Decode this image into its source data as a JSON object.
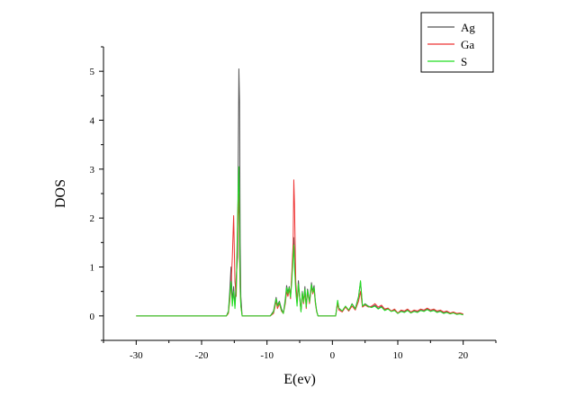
{
  "chart_data": {
    "type": "line",
    "title": "",
    "xlabel": "E(ev)",
    "ylabel": "DOS",
    "xlim": [
      -35,
      25
    ],
    "ylim": [
      -0.5,
      5.5
    ],
    "x_ticks": [
      -30,
      -20,
      -10,
      0,
      10,
      20
    ],
    "y_ticks": [
      0,
      1,
      2,
      3,
      4,
      5
    ],
    "x_tick_labels": [
      "-30",
      "-20",
      "-10",
      "0",
      "10",
      "20"
    ],
    "y_tick_labels": [
      "0",
      "1",
      "2",
      "3",
      "4",
      "5"
    ],
    "grid": false,
    "legend_position": "top-right",
    "series": [
      {
        "name": "Ag",
        "color": "#555555",
        "points": [
          [
            -30,
            0
          ],
          [
            -16.2,
            0
          ],
          [
            -15.9,
            0.1
          ],
          [
            -15.7,
            0.5
          ],
          [
            -15.5,
            1.0
          ],
          [
            -15.3,
            0.3
          ],
          [
            -15.1,
            0.6
          ],
          [
            -14.9,
            0.2
          ],
          [
            -14.7,
            0.8
          ],
          [
            -14.5,
            1.2
          ],
          [
            -14.3,
            5.05
          ],
          [
            -14.2,
            4.4
          ],
          [
            -14.1,
            1.5
          ],
          [
            -14.0,
            0.4
          ],
          [
            -13.8,
            0
          ],
          [
            -9.5,
            0
          ],
          [
            -9.0,
            0.1
          ],
          [
            -8.6,
            0.38
          ],
          [
            -8.4,
            0.22
          ],
          [
            -8.1,
            0.3
          ],
          [
            -7.8,
            0.15
          ],
          [
            -7.5,
            0.05
          ],
          [
            -7.2,
            0.35
          ],
          [
            -7.0,
            0.62
          ],
          [
            -6.8,
            0.48
          ],
          [
            -6.6,
            0.6
          ],
          [
            -6.4,
            0.4
          ],
          [
            -6.2,
            0.8
          ],
          [
            -6.0,
            1.4
          ],
          [
            -5.9,
            1.6
          ],
          [
            -5.8,
            1.2
          ],
          [
            -5.6,
            0.55
          ],
          [
            -5.4,
            0.25
          ],
          [
            -5.2,
            0.72
          ],
          [
            -5.0,
            0.4
          ],
          [
            -4.8,
            0.1
          ],
          [
            -4.6,
            0.5
          ],
          [
            -4.4,
            0.3
          ],
          [
            -4.2,
            0.6
          ],
          [
            -4.0,
            0.2
          ],
          [
            -3.8,
            0.55
          ],
          [
            -3.5,
            0.3
          ],
          [
            -3.2,
            0.68
          ],
          [
            -3.0,
            0.5
          ],
          [
            -2.8,
            0.62
          ],
          [
            -2.6,
            0.3
          ],
          [
            -2.4,
            0.1
          ],
          [
            -2.2,
            0
          ],
          [
            0.5,
            0
          ],
          [
            0.8,
            0.3
          ],
          [
            1.0,
            0.15
          ],
          [
            1.5,
            0.1
          ],
          [
            2.0,
            0.2
          ],
          [
            2.5,
            0.1
          ],
          [
            3.0,
            0.25
          ],
          [
            3.5,
            0.15
          ],
          [
            4.0,
            0.4
          ],
          [
            4.3,
            0.7
          ],
          [
            4.6,
            0.2
          ],
          [
            5.0,
            0.25
          ],
          [
            5.5,
            0.2
          ],
          [
            6.0,
            0.18
          ],
          [
            6.5,
            0.22
          ],
          [
            7.0,
            0.15
          ],
          [
            7.5,
            0.2
          ],
          [
            8.0,
            0.12
          ],
          [
            8.5,
            0.15
          ],
          [
            9.0,
            0.1
          ],
          [
            9.5,
            0.12
          ],
          [
            10.0,
            0.05
          ],
          [
            10.5,
            0.1
          ],
          [
            11.0,
            0.08
          ],
          [
            11.5,
            0.12
          ],
          [
            12.0,
            0.06
          ],
          [
            12.5,
            0.1
          ],
          [
            13.0,
            0.08
          ],
          [
            13.5,
            0.12
          ],
          [
            14.0,
            0.1
          ],
          [
            14.5,
            0.14
          ],
          [
            15.0,
            0.1
          ],
          [
            15.5,
            0.12
          ],
          [
            16.0,
            0.08
          ],
          [
            16.5,
            0.1
          ],
          [
            17.0,
            0.06
          ],
          [
            17.5,
            0.08
          ],
          [
            18.0,
            0.05
          ],
          [
            18.5,
            0.07
          ],
          [
            19.0,
            0.04
          ],
          [
            19.5,
            0.05
          ],
          [
            20.0,
            0.03
          ]
        ]
      },
      {
        "name": "Ga",
        "color": "#ee3333",
        "points": [
          [
            -30,
            0
          ],
          [
            -16.2,
            0
          ],
          [
            -15.9,
            0.05
          ],
          [
            -15.7,
            0.3
          ],
          [
            -15.5,
            0.6
          ],
          [
            -15.3,
            1.2
          ],
          [
            -15.1,
            2.05
          ],
          [
            -14.9,
            0.7
          ],
          [
            -14.7,
            0.4
          ],
          [
            -14.5,
            1.8
          ],
          [
            -14.3,
            2.5
          ],
          [
            -14.2,
            1.2
          ],
          [
            -14.1,
            0.5
          ],
          [
            -14.0,
            0.2
          ],
          [
            -13.8,
            0
          ],
          [
            -9.5,
            0
          ],
          [
            -9.0,
            0.05
          ],
          [
            -8.6,
            0.3
          ],
          [
            -8.4,
            0.15
          ],
          [
            -8.1,
            0.25
          ],
          [
            -7.8,
            0.1
          ],
          [
            -7.5,
            0.05
          ],
          [
            -7.2,
            0.25
          ],
          [
            -7.0,
            0.5
          ],
          [
            -6.8,
            0.4
          ],
          [
            -6.6,
            0.55
          ],
          [
            -6.4,
            0.35
          ],
          [
            -6.2,
            0.9
          ],
          [
            -6.0,
            1.5
          ],
          [
            -5.9,
            2.78
          ],
          [
            -5.8,
            2.3
          ],
          [
            -5.6,
            0.7
          ],
          [
            -5.4,
            0.3
          ],
          [
            -5.2,
            0.6
          ],
          [
            -5.0,
            0.35
          ],
          [
            -4.8,
            0.1
          ],
          [
            -4.6,
            0.45
          ],
          [
            -4.4,
            0.25
          ],
          [
            -4.2,
            0.5
          ],
          [
            -4.0,
            0.15
          ],
          [
            -3.8,
            0.5
          ],
          [
            -3.5,
            0.25
          ],
          [
            -3.2,
            0.6
          ],
          [
            -3.0,
            0.45
          ],
          [
            -2.8,
            0.55
          ],
          [
            -2.6,
            0.25
          ],
          [
            -2.4,
            0.08
          ],
          [
            -2.2,
            0
          ],
          [
            0.5,
            0
          ],
          [
            0.8,
            0.25
          ],
          [
            1.0,
            0.12
          ],
          [
            1.5,
            0.08
          ],
          [
            2.0,
            0.18
          ],
          [
            2.5,
            0.1
          ],
          [
            3.0,
            0.2
          ],
          [
            3.5,
            0.12
          ],
          [
            4.0,
            0.3
          ],
          [
            4.3,
            0.5
          ],
          [
            4.6,
            0.18
          ],
          [
            5.0,
            0.22
          ],
          [
            5.5,
            0.18
          ],
          [
            6.0,
            0.2
          ],
          [
            6.5,
            0.25
          ],
          [
            7.0,
            0.18
          ],
          [
            7.5,
            0.22
          ],
          [
            8.0,
            0.14
          ],
          [
            8.5,
            0.16
          ],
          [
            9.0,
            0.1
          ],
          [
            9.5,
            0.14
          ],
          [
            10.0,
            0.06
          ],
          [
            10.5,
            0.12
          ],
          [
            11.0,
            0.1
          ],
          [
            11.5,
            0.14
          ],
          [
            12.0,
            0.08
          ],
          [
            12.5,
            0.12
          ],
          [
            13.0,
            0.1
          ],
          [
            13.5,
            0.14
          ],
          [
            14.0,
            0.12
          ],
          [
            14.5,
            0.16
          ],
          [
            15.0,
            0.12
          ],
          [
            15.5,
            0.14
          ],
          [
            16.0,
            0.1
          ],
          [
            16.5,
            0.12
          ],
          [
            17.0,
            0.08
          ],
          [
            17.5,
            0.1
          ],
          [
            18.0,
            0.06
          ],
          [
            18.5,
            0.08
          ],
          [
            19.0,
            0.05
          ],
          [
            19.5,
            0.06
          ],
          [
            20.0,
            0.04
          ]
        ]
      },
      {
        "name": "S",
        "color": "#22dd22",
        "points": [
          [
            -30,
            0
          ],
          [
            -16.2,
            0
          ],
          [
            -15.9,
            0.08
          ],
          [
            -15.7,
            0.4
          ],
          [
            -15.5,
            0.7
          ],
          [
            -15.3,
            0.2
          ],
          [
            -15.1,
            0.5
          ],
          [
            -14.9,
            0.15
          ],
          [
            -14.7,
            0.6
          ],
          [
            -14.5,
            2.0
          ],
          [
            -14.3,
            3.05
          ],
          [
            -14.2,
            1.8
          ],
          [
            -14.1,
            0.6
          ],
          [
            -14.0,
            0.2
          ],
          [
            -13.8,
            0
          ],
          [
            -9.5,
            0
          ],
          [
            -9.0,
            0.08
          ],
          [
            -8.6,
            0.35
          ],
          [
            -8.4,
            0.2
          ],
          [
            -8.1,
            0.28
          ],
          [
            -7.8,
            0.12
          ],
          [
            -7.5,
            0.05
          ],
          [
            -7.2,
            0.3
          ],
          [
            -7.0,
            0.58
          ],
          [
            -6.8,
            0.45
          ],
          [
            -6.6,
            0.58
          ],
          [
            -6.4,
            0.38
          ],
          [
            -6.2,
            0.7
          ],
          [
            -6.0,
            1.2
          ],
          [
            -5.9,
            1.45
          ],
          [
            -5.8,
            1.0
          ],
          [
            -5.6,
            0.5
          ],
          [
            -5.4,
            0.2
          ],
          [
            -5.2,
            0.65
          ],
          [
            -5.0,
            0.38
          ],
          [
            -4.8,
            0.08
          ],
          [
            -4.6,
            0.48
          ],
          [
            -4.4,
            0.28
          ],
          [
            -4.2,
            0.55
          ],
          [
            -4.0,
            0.18
          ],
          [
            -3.8,
            0.52
          ],
          [
            -3.5,
            0.28
          ],
          [
            -3.2,
            0.64
          ],
          [
            -3.0,
            0.48
          ],
          [
            -2.8,
            0.58
          ],
          [
            -2.6,
            0.28
          ],
          [
            -2.4,
            0.09
          ],
          [
            -2.2,
            0
          ],
          [
            0.5,
            0
          ],
          [
            0.8,
            0.32
          ],
          [
            1.0,
            0.16
          ],
          [
            1.5,
            0.1
          ],
          [
            2.0,
            0.2
          ],
          [
            2.5,
            0.12
          ],
          [
            3.0,
            0.24
          ],
          [
            3.5,
            0.14
          ],
          [
            4.0,
            0.38
          ],
          [
            4.3,
            0.72
          ],
          [
            4.6,
            0.2
          ],
          [
            5.0,
            0.24
          ],
          [
            5.5,
            0.19
          ],
          [
            6.0,
            0.17
          ],
          [
            6.5,
            0.2
          ],
          [
            7.0,
            0.14
          ],
          [
            7.5,
            0.18
          ],
          [
            8.0,
            0.11
          ],
          [
            8.5,
            0.14
          ],
          [
            9.0,
            0.09
          ],
          [
            9.5,
            0.11
          ],
          [
            10.0,
            0.05
          ],
          [
            10.5,
            0.09
          ],
          [
            11.0,
            0.07
          ],
          [
            11.5,
            0.11
          ],
          [
            12.0,
            0.06
          ],
          [
            12.5,
            0.09
          ],
          [
            13.0,
            0.07
          ],
          [
            13.5,
            0.11
          ],
          [
            14.0,
            0.09
          ],
          [
            14.5,
            0.13
          ],
          [
            15.0,
            0.09
          ],
          [
            15.5,
            0.11
          ],
          [
            16.0,
            0.07
          ],
          [
            16.5,
            0.09
          ],
          [
            17.0,
            0.05
          ],
          [
            17.5,
            0.07
          ],
          [
            18.0,
            0.04
          ],
          [
            18.5,
            0.06
          ],
          [
            19.0,
            0.03
          ],
          [
            19.5,
            0.04
          ],
          [
            20.0,
            0.02
          ]
        ]
      }
    ]
  }
}
